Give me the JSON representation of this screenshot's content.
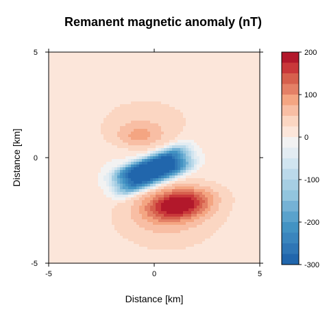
{
  "chart_data": {
    "type": "heatmap",
    "title": "Remanent magnetic anomaly (nT)",
    "xlabel": "Distance [km]",
    "ylabel": "Distance [km]",
    "xlim": [
      -5,
      5
    ],
    "ylim": [
      -5,
      5
    ],
    "x_ticks": [
      "-5",
      "0",
      "5"
    ],
    "y_ticks": [
      "5",
      "0",
      "-5"
    ],
    "colorbar": {
      "range": [
        -300,
        200
      ],
      "tick_values": [
        200,
        100,
        0,
        -100,
        -200,
        -300
      ],
      "tick_labels": [
        "200",
        "100",
        "0",
        "-100",
        "-200",
        "-300"
      ],
      "levels": [
        {
          "from": 175,
          "to": 200,
          "color": "#b2182b"
        },
        {
          "from": 150,
          "to": 175,
          "color": "#c9383a"
        },
        {
          "from": 125,
          "to": 150,
          "color": "#d6604d"
        },
        {
          "from": 100,
          "to": 125,
          "color": "#e48066"
        },
        {
          "from": 75,
          "to": 100,
          "color": "#f4a582"
        },
        {
          "from": 50,
          "to": 75,
          "color": "#f8bea4"
        },
        {
          "from": 25,
          "to": 50,
          "color": "#fbd6c2"
        },
        {
          "from": 0,
          "to": 25,
          "color": "#fce6da"
        },
        {
          "from": -25,
          "to": 0,
          "color": "#f2f2f2"
        },
        {
          "from": -50,
          "to": -25,
          "color": "#e3ecf2"
        },
        {
          "from": -75,
          "to": -50,
          "color": "#d1e5f0"
        },
        {
          "from": -100,
          "to": -75,
          "color": "#bbd9ea"
        },
        {
          "from": -125,
          "to": -100,
          "color": "#a6cee3"
        },
        {
          "from": -150,
          "to": -125,
          "color": "#92c5de"
        },
        {
          "from": -175,
          "to": -150,
          "color": "#75b2d5"
        },
        {
          "from": -200,
          "to": -175,
          "color": "#5aa2cc"
        },
        {
          "from": -225,
          "to": -200,
          "color": "#4393c3"
        },
        {
          "from": -250,
          "to": -225,
          "color": "#3a85bd"
        },
        {
          "from": -275,
          "to": -250,
          "color": "#2f76b5"
        },
        {
          "from": -300,
          "to": -275,
          "color": "#2166ac"
        }
      ]
    },
    "features": {
      "negative_lobe": {
        "center": [
          -0.1,
          -0.6
        ],
        "min_value": -295
      },
      "positive_lobe": {
        "center": [
          1.2,
          -2.2
        ],
        "max_value": 170
      },
      "minor_positive_lobe": {
        "center": [
          -0.7,
          1.0
        ],
        "max_value": 75
      },
      "background_value": 15
    }
  }
}
